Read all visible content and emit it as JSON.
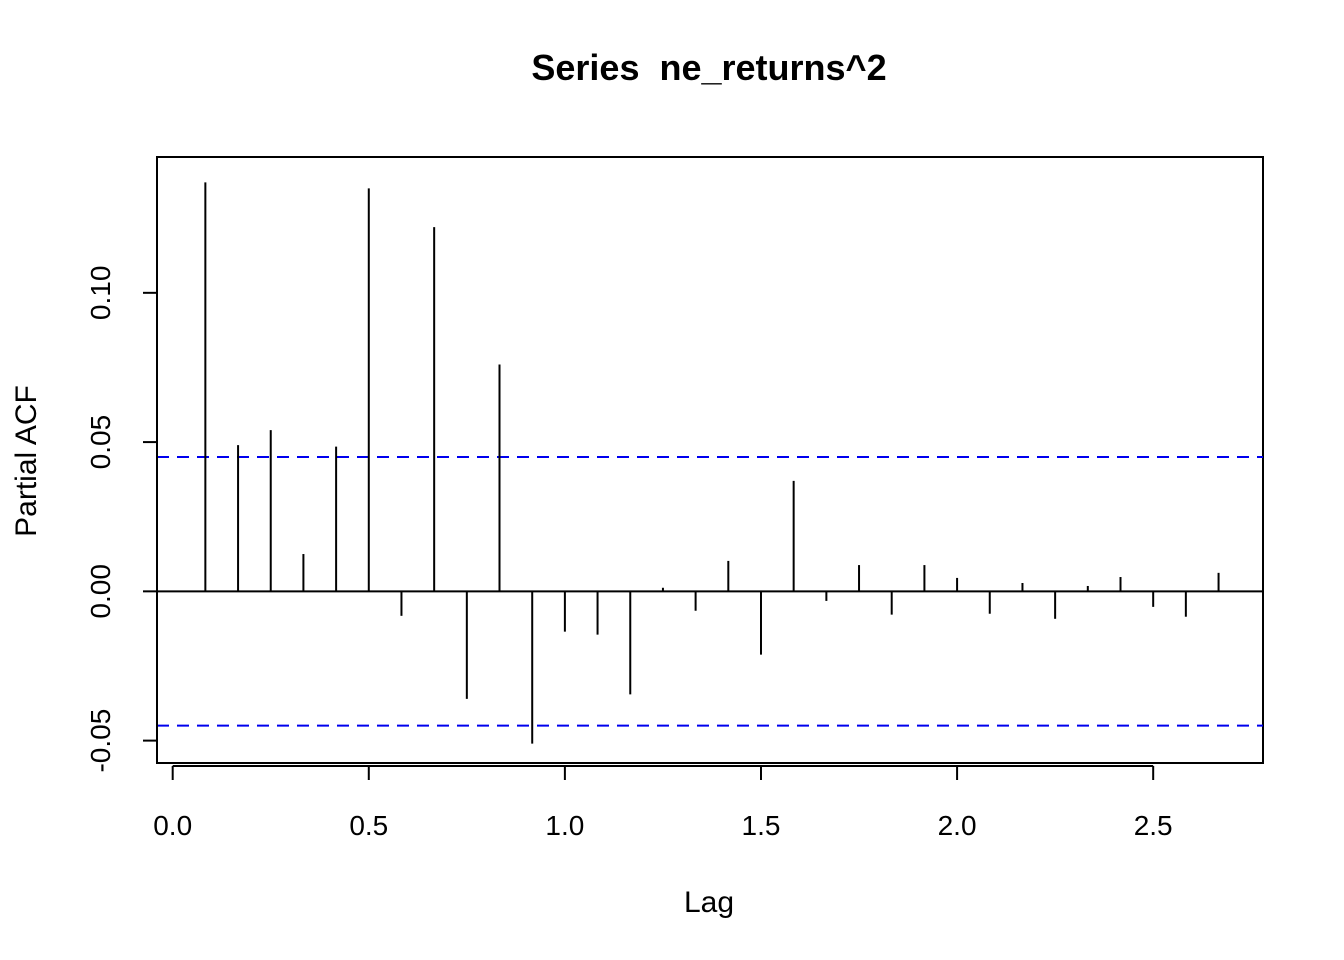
{
  "chart_data": {
    "type": "bar",
    "title": "Series  ne_returns^2",
    "xlabel": "Lag",
    "ylabel": "Partial ACF",
    "xlim": [
      -0.04,
      2.78
    ],
    "ylim": [
      -0.0575,
      0.1455
    ],
    "xticks": [
      0.0,
      0.5,
      1.0,
      1.5,
      2.0,
      2.5
    ],
    "xtick_labels": [
      "0.0",
      "0.5",
      "1.0",
      "1.5",
      "2.0",
      "2.5"
    ],
    "yticks": [
      -0.05,
      0.0,
      0.05,
      0.1
    ],
    "ytick_labels": [
      "-0.05",
      "0.00",
      "0.05",
      "0.10"
    ],
    "grid": false,
    "confidence_bound": 0.045,
    "series": [
      {
        "x": [
          0.0833,
          0.1667,
          0.25,
          0.3333,
          0.4167,
          0.5,
          0.5833,
          0.6667,
          0.75,
          0.8333,
          0.9167,
          1.0,
          1.0833,
          1.1667,
          1.25,
          1.3333,
          1.4167,
          1.5,
          1.5833,
          1.6667,
          1.75,
          1.8333,
          1.9167,
          2.0,
          2.0833,
          2.1667,
          2.25,
          2.3333,
          2.4167,
          2.5,
          2.5833,
          2.6667
        ],
        "values": [
          0.137,
          0.049,
          0.054,
          0.0125,
          0.0485,
          0.135,
          -0.0082,
          0.122,
          -0.036,
          0.076,
          -0.051,
          -0.0135,
          -0.0145,
          -0.0345,
          0.0012,
          -0.0065,
          0.0102,
          -0.0212,
          0.037,
          -0.0032,
          0.0088,
          -0.0078,
          0.0088,
          0.0045,
          -0.0075,
          0.0028,
          -0.0092,
          0.0018,
          0.0048,
          -0.0052,
          -0.0085,
          0.0062
        ]
      }
    ],
    "colors": {
      "bars": "#000000",
      "bounds": "#0000ee",
      "frame": "#000000"
    }
  }
}
